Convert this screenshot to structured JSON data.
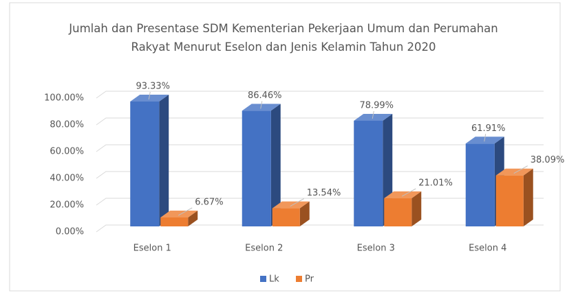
{
  "chart_data": {
    "type": "bar3d",
    "title": "Jumlah dan Presentase SDM Kementerian Pekerjaan Umum dan Perumahan Rakyat Menurut Eselon dan Jenis Kelamin Tahun 2020",
    "categories": [
      "Eselon 1",
      "Eselon 2",
      "Eselon 3",
      "Eselon 4"
    ],
    "series": [
      {
        "name": "Lk",
        "color": "#4472c4",
        "values": [
          93.33,
          86.46,
          78.99,
          61.91
        ],
        "value_labels": [
          "93.33%",
          "86.46%",
          "78.99%",
          "61.91%"
        ]
      },
      {
        "name": "Pr",
        "color": "#ed7d31",
        "values": [
          6.67,
          13.54,
          21.01,
          38.09
        ],
        "value_labels": [
          "6.67%",
          "13.54%",
          "21.01%",
          "38.09%"
        ]
      }
    ],
    "ylim": [
      0,
      100
    ],
    "yticks": [
      {
        "value": 0,
        "label": "0.00%"
      },
      {
        "value": 20,
        "label": "20.00%"
      },
      {
        "value": 40,
        "label": "40.00%"
      },
      {
        "value": 60,
        "label": "60.00%"
      },
      {
        "value": 80,
        "label": "80.00%"
      },
      {
        "value": 100,
        "label": "100.00%"
      }
    ],
    "grid": true,
    "legend": "bottom"
  }
}
